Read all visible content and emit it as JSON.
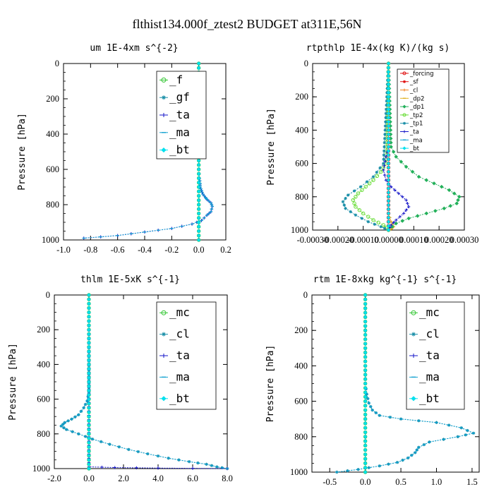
{
  "title": "flthist134.000f_ztest2  BUDGET at311E,56N",
  "colors": {
    "green": "#2fc52f",
    "teal": "#1a8fa8",
    "blue": "#1414c8",
    "cyan": "#10a0d0",
    "aqua": "#00e0ee",
    "red": "#e01010",
    "orange": "#f08020",
    "yellow": "#e0b020",
    "lime": "#66dd33",
    "seagreen": "#23b05a"
  },
  "chart_data": [
    {
      "type": "line",
      "title": "um  1E-4xm s^{-2}",
      "ylabel": "Pressure [hPa]",
      "xlim": [
        -1.0,
        0.2
      ],
      "ylim": [
        1000,
        0
      ],
      "xticks": [
        -1.0,
        -0.8,
        -0.6,
        -0.4,
        -0.2,
        0.0,
        0.2
      ],
      "xtick_labels": [
        "-1.0",
        "-0.8",
        "-0.6",
        "-0.4",
        "-0.2",
        "0.0",
        "0.2"
      ],
      "yticks": [
        0,
        200,
        400,
        600,
        800,
        1000
      ],
      "ytick_labels": [
        "0",
        "200",
        "400",
        "600",
        "800",
        "1000"
      ],
      "legend_position": "top-right",
      "legend_size": "large",
      "legend": [
        "_f",
        "_gf",
        "_ta",
        "_ma",
        "_bt"
      ],
      "series": [
        {
          "name": "_f",
          "color": "green",
          "marker": "circle",
          "x": [
            0,
            0
          ],
          "y": [
            0,
            1000
          ]
        },
        {
          "name": "_gf",
          "color": "teal",
          "marker": "star",
          "x": [
            0,
            0
          ],
          "y": [
            0,
            1000
          ]
        },
        {
          "name": "_ta",
          "color": "blue",
          "marker": "plus",
          "x": [
            0,
            0,
            0.005,
            0.01,
            0.01,
            0.02,
            0.03,
            0.05,
            0.06,
            0.09,
            0.1,
            0.09,
            0.06,
            0.02,
            -0.05,
            -0.2,
            -0.4,
            -0.6,
            -0.85
          ],
          "y": [
            0,
            600,
            650,
            680,
            700,
            720,
            740,
            760,
            770,
            790,
            810,
            840,
            860,
            890,
            910,
            935,
            955,
            975,
            990
          ]
        },
        {
          "name": "_ma",
          "color": "cyan",
          "marker": "dash",
          "x": [
            0,
            0,
            0.005,
            0.01,
            0.01,
            0.02,
            0.03,
            0.05,
            0.06,
            0.09,
            0.1,
            0.09,
            0.06,
            0.02,
            -0.05,
            -0.2,
            -0.4,
            -0.6,
            -0.85
          ],
          "y": [
            0,
            600,
            650,
            680,
            700,
            720,
            740,
            760,
            770,
            790,
            810,
            840,
            860,
            890,
            910,
            935,
            955,
            975,
            990
          ]
        },
        {
          "name": "_bt",
          "color": "aqua",
          "marker": "diamond",
          "x": [
            0,
            0
          ],
          "y": [
            0,
            1000
          ]
        }
      ]
    },
    {
      "type": "line",
      "title": "rtpthlp  1E-4x(kg K)/(kg s)",
      "ylabel": "Pressure [hPa]",
      "xlim": [
        -0.0003,
        0.0003
      ],
      "ylim": [
        1000,
        0
      ],
      "xticks": [
        -0.0003,
        -0.0002,
        -0.0001,
        0,
        0.0001,
        0.0002,
        0.0003
      ],
      "xtick_labels": [
        "-0.00030",
        "-0.00020",
        "-0.00010",
        "0.00000",
        "0.00010",
        "0.00020",
        "0.00030"
      ],
      "yticks": [
        0,
        200,
        400,
        600,
        800,
        1000
      ],
      "ytick_labels": [
        "0",
        "200",
        "400",
        "600",
        "800",
        "1000"
      ],
      "legend_position": "top-right",
      "legend_size": "small",
      "legend": [
        "_forcing",
        "_sf",
        "_cl",
        "_dp2",
        "_dp1",
        "_tp2",
        "_tp1",
        "_ta",
        "_ma",
        "_bt"
      ],
      "series": [
        {
          "name": "_forcing",
          "color": "red",
          "marker": "circle",
          "x": [
            0,
            0
          ],
          "y": [
            0,
            1000
          ]
        },
        {
          "name": "_sf",
          "color": "red",
          "marker": "star",
          "x": [
            0,
            0
          ],
          "y": [
            0,
            1000
          ]
        },
        {
          "name": "_cl",
          "color": "orange",
          "marker": "plus",
          "x": [
            0,
            0,
            1e-05,
            2e-05,
            1e-05,
            0
          ],
          "y": [
            0,
            900,
            950,
            980,
            995,
            1000
          ]
        },
        {
          "name": "_dp2",
          "color": "yellow",
          "marker": "dash",
          "x": [
            0,
            0,
            1e-05,
            2e-05,
            1e-05,
            0
          ],
          "y": [
            0,
            900,
            950,
            980,
            995,
            1000
          ]
        },
        {
          "name": "_dp1",
          "color": "seagreen",
          "marker": "diamond",
          "x": [
            0,
            1e-05,
            3e-05,
            7e-05,
            0.00012,
            0.00018,
            0.00024,
            0.00028,
            0.00027,
            0.00022,
            0.00015,
            8e-05,
            3e-05,
            0
          ],
          "y": [
            0,
            500,
            560,
            620,
            680,
            720,
            760,
            800,
            840,
            870,
            900,
            930,
            960,
            1000
          ]
        },
        {
          "name": "_tp2",
          "color": "lime",
          "marker": "circle",
          "x": [
            0,
            -1e-05,
            -3e-05,
            -6e-05,
            -9e-05,
            -0.00012,
            -0.00014,
            -0.00013,
            -0.0001,
            -6e-05,
            -2e-05,
            0
          ],
          "y": [
            0,
            600,
            650,
            700,
            740,
            780,
            820,
            860,
            900,
            940,
            970,
            1000
          ]
        },
        {
          "name": "_tp1",
          "color": "teal",
          "marker": "star",
          "x": [
            0,
            -2e-05,
            -6e-05,
            -0.00011,
            -0.00016,
            -0.00018,
            -0.00017,
            -0.00013,
            -8e-05,
            -3e-05,
            0
          ],
          "y": [
            0,
            600,
            680,
            740,
            790,
            830,
            870,
            910,
            950,
            980,
            1000
          ]
        },
        {
          "name": "_ta",
          "color": "blue",
          "marker": "plus",
          "x": [
            0,
            0,
            -1e-05,
            -2e-05,
            -1e-05,
            1e-05,
            4e-05,
            7e-05,
            8e-05,
            6e-05,
            3e-05,
            1e-05,
            0
          ],
          "y": [
            0,
            500,
            560,
            640,
            700,
            740,
            780,
            820,
            860,
            900,
            940,
            970,
            1000
          ]
        },
        {
          "name": "_ma",
          "color": "cyan",
          "marker": "dash",
          "x": [
            0,
            0
          ],
          "y": [
            0,
            1000
          ]
        },
        {
          "name": "_bt",
          "color": "aqua",
          "marker": "diamond",
          "x": [
            0,
            0
          ],
          "y": [
            0,
            1000
          ]
        }
      ]
    },
    {
      "type": "line",
      "title": "thlm  1E-5xK s^{-1}",
      "ylabel": "Pressure [hPa]",
      "xlim": [
        -2.0,
        8.0
      ],
      "ylim": [
        1000,
        0
      ],
      "xticks": [
        -2,
        0,
        2,
        4,
        6,
        8
      ],
      "xtick_labels": [
        "-2.0",
        "0.0",
        "2.0",
        "4.0",
        "6.0",
        "8.0"
      ],
      "yticks": [
        0,
        200,
        400,
        600,
        800,
        1000
      ],
      "ytick_labels": [
        "0",
        "200",
        "400",
        "600",
        "800",
        "1000"
      ],
      "legend_position": "top-right",
      "legend_size": "large",
      "legend": [
        "_mc",
        "_cl",
        "_ta",
        "_ma",
        "_bt"
      ],
      "series": [
        {
          "name": "_mc",
          "color": "green",
          "marker": "circle",
          "x": [
            0,
            0
          ],
          "y": [
            0,
            1000
          ]
        },
        {
          "name": "_cl",
          "color": "teal",
          "marker": "star",
          "x": [
            0,
            0,
            -0.1,
            -0.3,
            -0.6,
            -1.0,
            -1.4,
            -1.6,
            -1.3,
            -0.6,
            0.2,
            1.2,
            2.3,
            3.4,
            4.6,
            5.8,
            6.8,
            7.4,
            8.0
          ],
          "y": [
            0,
            560,
            610,
            650,
            690,
            715,
            735,
            755,
            775,
            800,
            830,
            860,
            890,
            915,
            940,
            960,
            975,
            990,
            1000
          ]
        },
        {
          "name": "_ta",
          "color": "blue",
          "marker": "plus",
          "x": [
            0,
            0,
            1.5,
            4.0,
            8.0
          ],
          "y": [
            0,
            990,
            994,
            997,
            1000
          ]
        },
        {
          "name": "_ma",
          "color": "cyan",
          "marker": "dash",
          "x": [
            0,
            0,
            -0.1,
            -0.3,
            -0.6,
            -1.0,
            -1.4,
            -1.6,
            -1.3,
            -0.6,
            0.2,
            1.2,
            2.3,
            3.4,
            4.6,
            5.8,
            6.8,
            7.4,
            8.0
          ],
          "y": [
            0,
            560,
            610,
            650,
            690,
            715,
            735,
            755,
            775,
            800,
            830,
            860,
            890,
            915,
            940,
            960,
            975,
            990,
            1000
          ]
        },
        {
          "name": "_bt",
          "color": "aqua",
          "marker": "diamond",
          "x": [
            0,
            0
          ],
          "y": [
            0,
            1000
          ]
        }
      ]
    },
    {
      "type": "line",
      "title": "rtm  1E-8xkg kg^{-1} s^{-1}",
      "ylabel": "Pressure [hPa]",
      "xlim": [
        -0.75,
        1.6
      ],
      "ylim": [
        1000,
        0
      ],
      "xticks": [
        -0.5,
        0.0,
        0.5,
        1.0,
        1.5
      ],
      "xtick_labels": [
        "-0.5",
        "0.0",
        "0.5",
        "1.0",
        "1.5"
      ],
      "yticks": [
        0,
        200,
        400,
        600,
        800,
        1000
      ],
      "ytick_labels": [
        "0",
        "200",
        "400",
        "600",
        "800",
        "1000"
      ],
      "legend_position": "top-right",
      "legend_size": "large",
      "legend": [
        "_mc",
        "_cl",
        "_ta",
        "_ma",
        "_bt"
      ],
      "series": [
        {
          "name": "_mc",
          "color": "green",
          "marker": "circle",
          "x": [
            0,
            0
          ],
          "y": [
            0,
            1000
          ]
        },
        {
          "name": "_cl",
          "color": "teal",
          "marker": "star",
          "x": [
            0,
            0,
            0.02,
            0.05,
            0.1,
            0.2,
            0.5,
            1.0,
            1.35,
            1.52,
            1.3,
            0.9,
            0.75,
            0.7,
            0.6,
            0.45,
            0.2,
            -0.1,
            -0.4
          ],
          "y": [
            0,
            500,
            560,
            610,
            650,
            680,
            700,
            720,
            750,
            780,
            800,
            830,
            860,
            890,
            920,
            945,
            965,
            985,
            1000
          ]
        },
        {
          "name": "_ta",
          "color": "blue",
          "marker": "plus",
          "x": [
            0,
            0
          ],
          "y": [
            0,
            1000
          ]
        },
        {
          "name": "_ma",
          "color": "cyan",
          "marker": "dash",
          "x": [
            0,
            0,
            0.02,
            0.05,
            0.1,
            0.2,
            0.5,
            1.0,
            1.35,
            1.52,
            1.3,
            0.9,
            0.75,
            0.7,
            0.6,
            0.45,
            0.2,
            -0.1,
            -0.4
          ],
          "y": [
            0,
            500,
            560,
            610,
            650,
            680,
            700,
            720,
            750,
            780,
            800,
            830,
            860,
            890,
            920,
            945,
            965,
            985,
            1000
          ]
        },
        {
          "name": "_bt",
          "color": "aqua",
          "marker": "diamond",
          "x": [
            0,
            0
          ],
          "y": [
            0,
            1000
          ]
        }
      ]
    }
  ]
}
